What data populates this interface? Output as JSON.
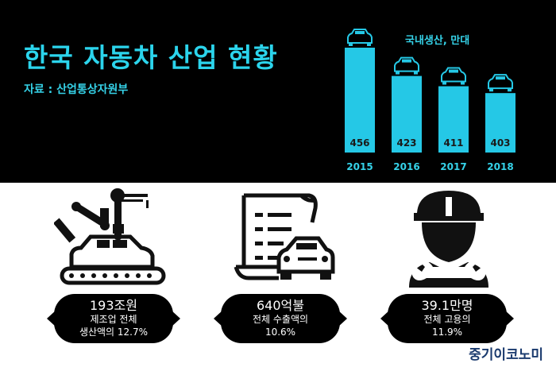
{
  "header": {
    "title": "한국 자동차 산업 현황",
    "source": "자료 : 산업통상자원부",
    "unit": "국내생산, 만대"
  },
  "chart_data": {
    "type": "bar",
    "title": "국내생산, 만대",
    "categories": [
      "2015",
      "2016",
      "2017",
      "2018"
    ],
    "values": [
      456,
      423,
      411,
      403
    ],
    "data_labels": [
      "456",
      "423",
      "411",
      "403"
    ],
    "color": "#25c8e6"
  },
  "stats": [
    {
      "value": "193조원",
      "line1": "제조업 전체",
      "line2": "생산액의 12.7%"
    },
    {
      "value": "640억불",
      "line1": "전체 수출액의",
      "line2": "10.6%"
    },
    {
      "value": "39.1만명",
      "line1": "전체 고용의",
      "line2": "11.9%"
    }
  ],
  "brand": "중기이코노미"
}
